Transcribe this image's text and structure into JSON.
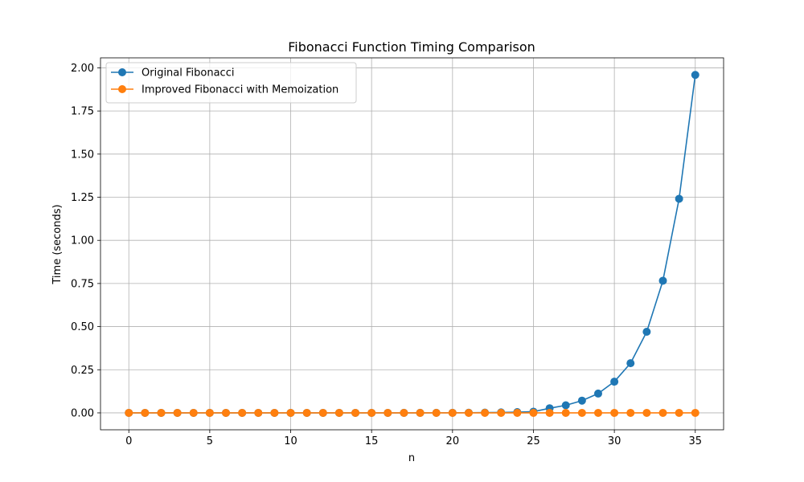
{
  "chart_data": {
    "type": "line",
    "title": "Fibonacci Function Timing Comparison",
    "xlabel": "n",
    "ylabel": "Time (seconds)",
    "xlim": [
      -1.75,
      36.75
    ],
    "ylim": [
      -0.098,
      2.058
    ],
    "xticks": [
      0,
      5,
      10,
      15,
      20,
      25,
      30,
      35
    ],
    "yticks": [
      0.0,
      0.25,
      0.5,
      0.75,
      1.0,
      1.25,
      1.5,
      1.75,
      2.0
    ],
    "xtick_labels": [
      "0",
      "5",
      "10",
      "15",
      "20",
      "25",
      "30",
      "35"
    ],
    "ytick_labels": [
      "0.00",
      "0.25",
      "0.50",
      "0.75",
      "1.00",
      "1.25",
      "1.50",
      "1.75",
      "2.00"
    ],
    "grid": true,
    "legend_position": "upper-left",
    "x": [
      0,
      1,
      2,
      3,
      4,
      5,
      6,
      7,
      8,
      9,
      10,
      11,
      12,
      13,
      14,
      15,
      16,
      17,
      18,
      19,
      20,
      21,
      22,
      23,
      24,
      25,
      26,
      27,
      28,
      29,
      30,
      31,
      32,
      33,
      34,
      35
    ],
    "series": [
      {
        "name": "Original Fibonacci",
        "color": "#1f77b4",
        "marker": "circle",
        "values": [
          0,
          0,
          0,
          0,
          0,
          0,
          0,
          0,
          0,
          0,
          0,
          0,
          0,
          0,
          0,
          0,
          0,
          0.0001,
          0.0002,
          0.0004,
          0.0006,
          0.001,
          0.0016,
          0.0026,
          0.0043,
          0.007,
          0.0268,
          0.044,
          0.071,
          0.112,
          0.181,
          0.288,
          0.47,
          0.766,
          1.241,
          1.959
        ]
      },
      {
        "name": "Improved Fibonacci with Memoization",
        "color": "#ff7f0e",
        "marker": "circle",
        "values": [
          0,
          0,
          0,
          0,
          0,
          0,
          0,
          0,
          0,
          0,
          0,
          0,
          0,
          0,
          0,
          0,
          0,
          0,
          0,
          0,
          0,
          0,
          0,
          0,
          0,
          0,
          0,
          0,
          0,
          0,
          0,
          0,
          0,
          0,
          0,
          0
        ]
      }
    ]
  }
}
